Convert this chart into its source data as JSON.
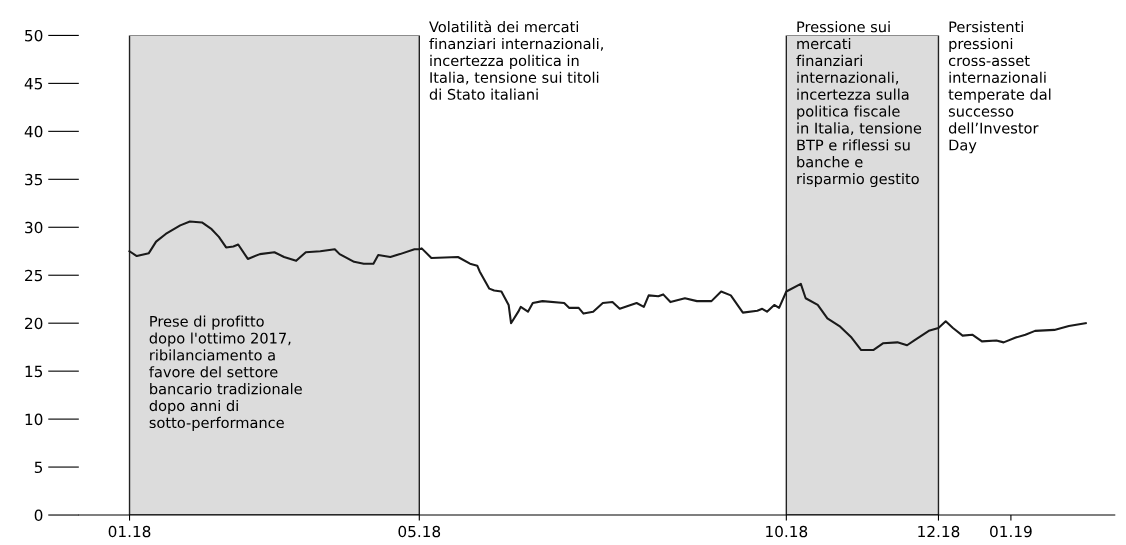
{
  "chart_data": {
    "type": "line",
    "x": [
      "2018-01-02",
      "2018-01-05",
      "2018-01-10",
      "2018-01-13",
      "2018-01-17",
      "2018-01-23",
      "2018-01-27",
      "2018-02-01",
      "2018-02-05",
      "2018-02-08",
      "2018-02-11",
      "2018-02-14",
      "2018-02-16",
      "2018-02-20",
      "2018-02-25",
      "2018-03-03",
      "2018-03-07",
      "2018-03-12",
      "2018-03-16",
      "2018-03-22",
      "2018-03-28",
      "2018-03-30",
      "2018-04-05",
      "2018-04-09",
      "2018-04-13",
      "2018-04-15",
      "2018-04-20",
      "2018-04-24",
      "2018-04-30",
      "2018-05-02",
      "2018-05-03",
      "2018-05-07",
      "2018-05-18",
      "2018-05-23",
      "2018-05-26",
      "2018-05-27",
      "2018-05-31",
      "2018-06-02",
      "2018-06-05",
      "2018-06-08",
      "2018-06-09",
      "2018-06-12",
      "2018-06-13",
      "2018-06-16",
      "2018-06-18",
      "2018-06-22",
      "2018-07-01",
      "2018-07-03",
      "2018-07-07",
      "2018-07-09",
      "2018-07-13",
      "2018-07-17",
      "2018-07-21",
      "2018-07-24",
      "2018-07-31",
      "2018-08-03",
      "2018-08-05",
      "2018-08-09",
      "2018-08-11",
      "2018-08-14",
      "2018-08-20",
      "2018-08-25",
      "2018-08-31",
      "2018-09-04",
      "2018-09-08",
      "2018-09-13",
      "2018-09-19",
      "2018-09-21",
      "2018-09-23",
      "2018-09-26",
      "2018-09-28",
      "2018-10-01",
      "2018-10-07",
      "2018-10-09",
      "2018-10-14",
      "2018-10-18",
      "2018-10-23",
      "2018-10-28",
      "2018-11-01",
      "2018-11-06",
      "2018-11-10",
      "2018-11-16",
      "2018-11-20",
      "2018-11-23",
      "2018-11-29",
      "2018-12-03",
      "2018-12-06",
      "2018-12-09",
      "2018-12-13",
      "2018-12-17",
      "2018-12-21",
      "2018-12-27",
      "2018-12-30",
      "2019-01-04",
      "2019-01-08",
      "2019-01-12",
      "2019-01-20",
      "2019-01-26",
      "2019-02-02"
    ],
    "series": [
      {
        "color": "#1a1a1a",
        "values": [
          27.5,
          27.0,
          27.3,
          28.5,
          29.3,
          30.2,
          30.6,
          30.5,
          29.8,
          29.0,
          27.9,
          28.0,
          28.2,
          26.7,
          27.2,
          27.4,
          26.9,
          26.5,
          27.4,
          27.5,
          27.7,
          27.2,
          26.4,
          26.2,
          26.2,
          27.1,
          26.9,
          27.2,
          27.7,
          27.7,
          27.8,
          26.8,
          26.9,
          26.2,
          26.0,
          25.4,
          23.6,
          23.4,
          23.3,
          21.9,
          20.0,
          21.2,
          21.7,
          21.2,
          22.1,
          22.3,
          22.1,
          21.6,
          21.6,
          21.0,
          21.2,
          22.1,
          22.2,
          21.5,
          22.1,
          21.7,
          22.9,
          22.8,
          23.0,
          22.2,
          22.6,
          22.3,
          22.3,
          23.3,
          22.9,
          21.1,
          21.3,
          21.5,
          21.2,
          21.9,
          21.6,
          23.3,
          24.1,
          22.6,
          21.9,
          20.5,
          19.7,
          18.5,
          17.2,
          17.2,
          17.9,
          18.0,
          17.7,
          18.2,
          19.2,
          19.5,
          20.2,
          19.5,
          18.7,
          18.8,
          18.1,
          18.2,
          18.0,
          18.5,
          18.8,
          19.2,
          19.3,
          19.7,
          20.0
        ]
      }
    ],
    "xlim": [
      "2017-12-12",
      "2019-02-14"
    ],
    "xticks": [
      {
        "value": "2018-01-02",
        "label": "01.18"
      },
      {
        "value": "2018-05-02",
        "label": "05.18"
      },
      {
        "value": "2018-10-01",
        "label": "10.18"
      },
      {
        "value": "2018-12-03",
        "label": "12.18"
      },
      {
        "value": "2019-01-02",
        "label": "01.19"
      }
    ],
    "ylim": [
      0,
      50
    ],
    "yticks": [
      0,
      5,
      10,
      15,
      20,
      25,
      30,
      35,
      40,
      45,
      50
    ],
    "bands": [
      {
        "axis": "x",
        "from": "2018-01-02",
        "to": "2018-05-02",
        "color": "#dcdcdc",
        "label": "Prese di profitto\ndopo l'ottimo 2017,\nribilanciamento a\nfavore del settore\nbancario tradizionale\ndopo anni di\nsotto-performance"
      },
      {
        "axis": "x",
        "from": "2018-10-01",
        "to": "2018-12-03",
        "color": "#dcdcdc",
        "label": "Pressione sui\nmercati\nfinanziari\ninternazionali,\nincertezza sulla\npolitica fiscale\nin Italia, tensione\nBTP e riflessi su\nbanche e\nrisparmio gestito"
      }
    ],
    "annotations": [
      "Volatilità dei mercati\nfinanziari internazionali,\nincertezza politica in\nItalia, tensione sui titoli\ndi Stato italiani",
      "Persistenti\npressioni\ncross-asset\ninternazionali\ntemperate dal\nsuccesso\ndell’Investor\nDay"
    ]
  }
}
